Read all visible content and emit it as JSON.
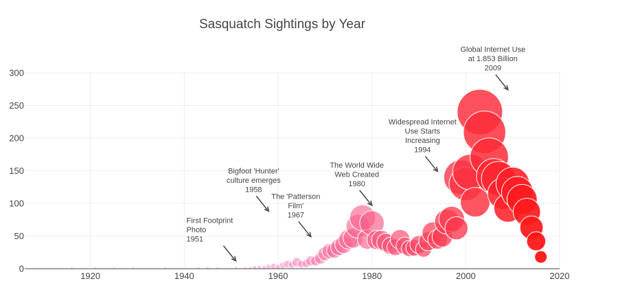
{
  "chart_data": {
    "type": "scatter",
    "title": "Sasquatch Sightings by Year",
    "xlim": [
      1906,
      2020
    ],
    "ylim": [
      0,
      300
    ],
    "xticks": [
      1920,
      1940,
      1960,
      1980,
      2000,
      2020
    ],
    "yticks": [
      0,
      50,
      100,
      150,
      200,
      250,
      300
    ],
    "grid": true,
    "points": [
      {
        "x": 1916,
        "y": 1
      },
      {
        "x": 1921,
        "y": 1
      },
      {
        "x": 1925,
        "y": 1
      },
      {
        "x": 1929,
        "y": 1
      },
      {
        "x": 1936,
        "y": 1
      },
      {
        "x": 1943,
        "y": 1
      },
      {
        "x": 1945,
        "y": 1
      },
      {
        "x": 1947,
        "y": 1
      },
      {
        "x": 1951,
        "y": 1
      },
      {
        "x": 1953,
        "y": 1
      },
      {
        "x": 1954,
        "y": 1
      },
      {
        "x": 1955,
        "y": 2
      },
      {
        "x": 1956,
        "y": 2
      },
      {
        "x": 1957,
        "y": 2
      },
      {
        "x": 1958,
        "y": 3
      },
      {
        "x": 1959,
        "y": 4
      },
      {
        "x": 1960,
        "y": 3
      },
      {
        "x": 1961,
        "y": 5
      },
      {
        "x": 1962,
        "y": 7
      },
      {
        "x": 1963,
        "y": 6
      },
      {
        "x": 1964,
        "y": 10
      },
      {
        "x": 1965,
        "y": 7
      },
      {
        "x": 1966,
        "y": 8
      },
      {
        "x": 1967,
        "y": 12
      },
      {
        "x": 1968,
        "y": 12
      },
      {
        "x": 1969,
        "y": 16
      },
      {
        "x": 1970,
        "y": 23
      },
      {
        "x": 1971,
        "y": 27
      },
      {
        "x": 1972,
        "y": 28
      },
      {
        "x": 1973,
        "y": 33
      },
      {
        "x": 1974,
        "y": 37
      },
      {
        "x": 1975,
        "y": 45
      },
      {
        "x": 1976,
        "y": 47
      },
      {
        "x": 1977,
        "y": 65
      },
      {
        "x": 1978,
        "y": 78
      },
      {
        "x": 1979,
        "y": 45
      },
      {
        "x": 1980,
        "y": 70
      },
      {
        "x": 1981,
        "y": 44
      },
      {
        "x": 1982,
        "y": 44
      },
      {
        "x": 1983,
        "y": 40
      },
      {
        "x": 1984,
        "y": 35
      },
      {
        "x": 1985,
        "y": 33
      },
      {
        "x": 1986,
        "y": 45
      },
      {
        "x": 1987,
        "y": 35
      },
      {
        "x": 1988,
        "y": 31
      },
      {
        "x": 1989,
        "y": 32
      },
      {
        "x": 1990,
        "y": 37
      },
      {
        "x": 1991,
        "y": 30
      },
      {
        "x": 1992,
        "y": 42
      },
      {
        "x": 1993,
        "y": 55
      },
      {
        "x": 1994,
        "y": 45
      },
      {
        "x": 1995,
        "y": 49
      },
      {
        "x": 1996,
        "y": 72
      },
      {
        "x": 1997,
        "y": 76
      },
      {
        "x": 1998,
        "y": 62
      },
      {
        "x": 1999,
        "y": 140
      },
      {
        "x": 2000,
        "y": 130
      },
      {
        "x": 2001,
        "y": 148
      },
      {
        "x": 2002,
        "y": 102
      },
      {
        "x": 2003,
        "y": 240
      },
      {
        "x": 2004,
        "y": 209
      },
      {
        "x": 2005,
        "y": 171
      },
      {
        "x": 2006,
        "y": 142
      },
      {
        "x": 2007,
        "y": 138
      },
      {
        "x": 2008,
        "y": 115
      },
      {
        "x": 2009,
        "y": 93
      },
      {
        "x": 2010,
        "y": 130
      },
      {
        "x": 2011,
        "y": 117
      },
      {
        "x": 2012,
        "y": 106
      },
      {
        "x": 2013,
        "y": 87
      },
      {
        "x": 2014,
        "y": 63
      },
      {
        "x": 2015,
        "y": 42
      },
      {
        "x": 2016,
        "y": 18
      }
    ],
    "annotations": [
      {
        "lines": [
          "First Footprint",
          "Photo",
          "1951"
        ],
        "x": 1951,
        "y": 12
      },
      {
        "lines": [
          "Bigfoot 'Hunter'",
          "culture emerges",
          "1958"
        ],
        "x": 1958,
        "y": 88
      },
      {
        "lines": [
          "The 'Patterson",
          "Film'",
          "1967"
        ],
        "x": 1967,
        "y": 49
      },
      {
        "lines": [
          "The World Wide",
          "Web Created",
          "1980"
        ],
        "x": 1980,
        "y": 97
      },
      {
        "lines": [
          "Widespread Internet",
          "Use Starts",
          "Increasing",
          "1994"
        ],
        "x": 1994,
        "y": 149
      },
      {
        "lines": [
          "Global Internet Use",
          "at 1.853 Billion",
          "2009"
        ],
        "x": 2009,
        "y": 274
      }
    ]
  }
}
